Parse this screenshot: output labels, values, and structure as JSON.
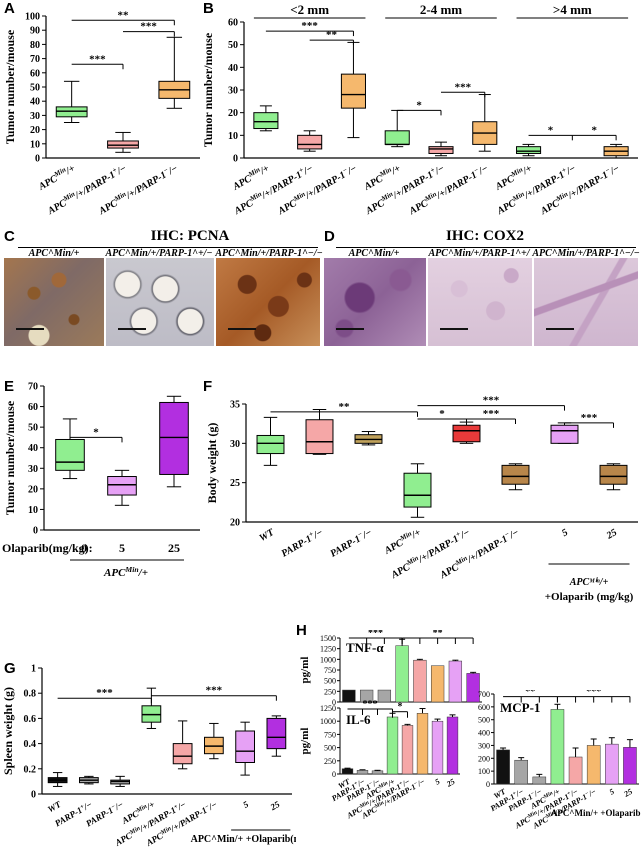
{
  "panel_labels": [
    "A",
    "B",
    "C",
    "D",
    "E",
    "F",
    "G",
    "H"
  ],
  "c": {
    "title": "IHC: PCNA",
    "captions": [
      "APC^Min/+",
      "APC^Min/+/PARP-1^+/−",
      "APC^Min/+/PARP-1^−/−"
    ]
  },
  "d": {
    "title": "IHC: COX2",
    "captions": [
      "APC^Min/+",
      "APC^Min/+/PARP-1^+/−",
      "APC^Min/+/PARP-1^−/−"
    ]
  },
  "colors": {
    "green": "#90ee90",
    "pink": "#f5a7a7",
    "orange": "#f5b86d",
    "tan": "#c0a25c",
    "red": "#e83a3a",
    "brown": "#b8864a",
    "violet": "#e6a1f5",
    "purple": "#b22fe0",
    "black": "#111111",
    "grey": "#a6a6a6"
  },
  "chart_data": [
    {
      "id": "A",
      "type": "box",
      "ylabel": "Tumor number/mouse",
      "ylim": [
        0,
        100
      ],
      "ticks": [
        0,
        10,
        20,
        30,
        40,
        50,
        60,
        70,
        80,
        90,
        100
      ],
      "categories": [
        "APC^Min/+",
        "APC^Min/+/PARP-1^+/−",
        "APC^Min/+/PARP-1^−/−"
      ],
      "boxes": [
        {
          "min": 25,
          "q1": 29,
          "median": 33,
          "q3": 36,
          "max": 54,
          "color": "#90ee90"
        },
        {
          "min": 4,
          "q1": 7,
          "median": 9,
          "q3": 12,
          "max": 18,
          "color": "#f5a7a7"
        },
        {
          "min": 35,
          "q1": 42,
          "median": 48,
          "q3": 54,
          "max": 85,
          "color": "#f5b86d"
        }
      ],
      "sig": [
        {
          "from": 0,
          "to": 2,
          "y": 97,
          "label": "**"
        },
        {
          "from": 1,
          "to": 2,
          "y": 89,
          "label": "***"
        },
        {
          "from": 0,
          "to": 1,
          "y": 66,
          "label": "***"
        }
      ]
    },
    {
      "id": "B",
      "type": "box",
      "ylabel": "Tumor number/mouse",
      "ylim": [
        0,
        60
      ],
      "ticks": [
        0,
        10,
        20,
        30,
        40,
        50,
        60
      ],
      "group_labels": [
        "<2 mm",
        "2-4 mm",
        ">4 mm"
      ],
      "categories": [
        "APC^Min/+",
        "APC^Min/+/PARP-1^+/−",
        "APC^Min/+/PARP-1^−/−",
        "APC^Min/+",
        "APC^Min/+/PARP-1^+/−",
        "APC^Min/+/PARP-1^−/−",
        "APC^Min/+",
        "APC^Min/+/PARP-1^+/−",
        "APC^Min/+/PARP-1^−/−"
      ],
      "boxes": [
        {
          "min": 12,
          "q1": 13,
          "median": 16,
          "q3": 20,
          "max": 23,
          "color": "#90ee90"
        },
        {
          "min": 3,
          "q1": 4,
          "median": 6,
          "q3": 10,
          "max": 12,
          "color": "#f5a7a7"
        },
        {
          "min": 9,
          "q1": 22,
          "median": 28,
          "q3": 37,
          "max": 51,
          "color": "#f5b86d"
        },
        {
          "min": 5,
          "q1": 6,
          "median": 6,
          "q3": 12,
          "max": 21,
          "color": "#90ee90"
        },
        {
          "min": 1,
          "q1": 2,
          "median": 4,
          "q3": 5,
          "max": 7,
          "color": "#f5a7a7"
        },
        {
          "min": 3,
          "q1": 6,
          "median": 11,
          "q3": 16,
          "max": 28,
          "color": "#f5b86d"
        },
        {
          "min": 1,
          "q1": 2,
          "median": 3,
          "q3": 5,
          "max": 6,
          "color": "#90ee90"
        },
        null,
        {
          "min": 0,
          "q1": 1,
          "median": 3,
          "q3": 5,
          "max": 6,
          "color": "#f5b86d"
        }
      ],
      "sig": [
        {
          "from": 0,
          "to": 2,
          "y": 56,
          "label": "***"
        },
        {
          "from": 1,
          "to": 2,
          "y": 52,
          "label": "**"
        },
        {
          "from": 3,
          "to": 4,
          "y": 21,
          "label": "*"
        },
        {
          "from": 4,
          "to": 5,
          "y": 29,
          "label": "***"
        },
        {
          "from": 6,
          "to": 7,
          "y": 10,
          "label": "*"
        },
        {
          "from": 7,
          "to": 8,
          "y": 10,
          "label": "*"
        }
      ]
    },
    {
      "id": "E",
      "type": "box",
      "ylabel": "Tumor number/mouse",
      "ylim": [
        0,
        70
      ],
      "ticks": [
        0,
        10,
        20,
        30,
        40,
        50,
        60,
        70
      ],
      "xprefix": "Olaparib(mg/kg): ",
      "categories": [
        "0",
        "5",
        "25"
      ],
      "group_label": "APC^Min/+",
      "boxes": [
        {
          "min": 25,
          "q1": 29,
          "median": 33,
          "q3": 44,
          "max": 54,
          "color": "#90ee90"
        },
        {
          "min": 12,
          "q1": 17,
          "median": 22,
          "q3": 26,
          "max": 29,
          "color": "#e6a1f5"
        },
        {
          "min": 21,
          "q1": 27,
          "median": 45,
          "q3": 62,
          "max": 65,
          "color": "#b22fe0"
        }
      ],
      "sig": [
        {
          "from": 0,
          "to": 1,
          "y": 45,
          "label": "*"
        }
      ]
    },
    {
      "id": "F",
      "type": "box",
      "ylabel": "Body weight (g)",
      "ylim": [
        20,
        35
      ],
      "ticks": [
        20,
        25,
        30,
        35
      ],
      "categories": [
        "WT",
        "PARP-1^+/−",
        "PARP-1^−/−",
        "APC^Min/+",
        "APC^Min/+/PARP-1^+/−",
        "APC^Min/+/PARP-1^−/−",
        "5",
        "25"
      ],
      "group_label": "APC^Min/+ +Olaparib (mg/kg)",
      "boxes": [
        {
          "min": 27.2,
          "q1": 28.7,
          "median": 30.0,
          "q3": 31.0,
          "max": 33.3,
          "color": "#90ee90"
        },
        {
          "min": 28.6,
          "q1": 28.7,
          "median": 30.2,
          "q3": 33.0,
          "max": 34.3,
          "color": "#f5a7a7"
        },
        {
          "min": 29.8,
          "q1": 30.0,
          "median": 30.5,
          "q3": 31.1,
          "max": 31.5,
          "color": "#c0a25c"
        },
        {
          "min": 20.6,
          "q1": 21.9,
          "median": 23.4,
          "q3": 26.2,
          "max": 27.4,
          "color": "#90ee90"
        },
        {
          "min": 30.0,
          "q1": 30.2,
          "median": 31.6,
          "q3": 32.3,
          "max": 32.7,
          "color": "#e83a3a"
        },
        {
          "min": 24.1,
          "q1": 24.8,
          "median": 25.8,
          "q3": 27.2,
          "max": 27.4,
          "color": "#b8864a"
        },
        {
          "min": 30.0,
          "q1": 30.0,
          "median": 31.6,
          "q3": 32.3,
          "max": 32.6,
          "color": "#e6a1f5"
        },
        {
          "min": 24.1,
          "q1": 24.8,
          "median": 25.8,
          "q3": 27.2,
          "max": 27.4,
          "color": "#b8864a"
        }
      ],
      "sig": [
        {
          "from": 0,
          "to": 3,
          "y": 34.0,
          "label": "**"
        },
        {
          "from": 3,
          "to": 4,
          "y": 33.1,
          "label": "*"
        },
        {
          "from": 3,
          "to": 6,
          "y": 34.8,
          "label": "***"
        },
        {
          "from": 4,
          "to": 5,
          "y": 33.1,
          "label": "***"
        },
        {
          "from": 6,
          "to": 7,
          "y": 32.6,
          "label": "***"
        }
      ]
    },
    {
      "id": "G",
      "type": "box",
      "ylabel": "Spleen weight (g)",
      "ylim": [
        0,
        1
      ],
      "ticks": [
        "0",
        "0.2",
        "0.4",
        "0.6",
        "0.8",
        "1"
      ],
      "tick_values": [
        0,
        0.2,
        0.4,
        0.6,
        0.8,
        1
      ],
      "categories": [
        "WT",
        "PARP-1^+/−",
        "PARP-1^−/−",
        "APC^Min/+",
        "APC^Min/+/PARP-1^+/−",
        "APC^Min/+/PARP-1^−/−",
        "5",
        "25"
      ],
      "group_label": "APC^Min/+ +Olaparib(mg/kg)",
      "boxes": [
        {
          "min": 0.06,
          "q1": 0.09,
          "median": 0.11,
          "q3": 0.13,
          "max": 0.17,
          "color": "#111111"
        },
        {
          "min": 0.08,
          "q1": 0.09,
          "median": 0.11,
          "q3": 0.13,
          "max": 0.14,
          "color": "#a6a6a6"
        },
        {
          "min": 0.06,
          "q1": 0.08,
          "median": 0.1,
          "q3": 0.11,
          "max": 0.14,
          "color": "#a6a6a6"
        },
        {
          "min": 0.52,
          "q1": 0.57,
          "median": 0.63,
          "q3": 0.7,
          "max": 0.84,
          "color": "#90ee90"
        },
        {
          "min": 0.2,
          "q1": 0.24,
          "median": 0.3,
          "q3": 0.4,
          "max": 0.58,
          "color": "#f5a7a7"
        },
        {
          "min": 0.28,
          "q1": 0.32,
          "median": 0.38,
          "q3": 0.45,
          "max": 0.56,
          "color": "#f5b86d"
        },
        {
          "min": 0.15,
          "q1": 0.25,
          "median": 0.34,
          "q3": 0.5,
          "max": 0.57,
          "color": "#e6a1f5"
        },
        {
          "min": 0.3,
          "q1": 0.36,
          "median": 0.45,
          "q3": 0.6,
          "max": 0.62,
          "color": "#b22fe0"
        }
      ],
      "sig": [
        {
          "from": 0,
          "to": 3,
          "y": 0.76,
          "label": "***"
        },
        {
          "from": 3,
          "to": 7,
          "y": 0.78,
          "label": "***"
        }
      ]
    },
    {
      "id": "H-TNF",
      "type": "bar",
      "title": "TNF-α",
      "ylabel": "pg/ml",
      "ylim": [
        0,
        1500
      ],
      "ticks": [
        0,
        250,
        500,
        750,
        1000,
        1250,
        1500
      ],
      "categories": [
        "WT",
        "PARP-1^+/−",
        "PARP-1^−/−",
        "APC^Min/+",
        "APC^Min/+/PARP-1^+/−",
        "APC^Min/+/PARP-1^−/−",
        "5",
        "25"
      ],
      "values": [
        280,
        280,
        280,
        1320,
        980,
        850,
        960,
        670
      ],
      "errors": [
        0,
        0,
        0,
        150,
        20,
        0,
        20,
        25
      ],
      "colors": [
        "#111111",
        "#a6a6a6",
        "#a6a6a6",
        "#90ee90",
        "#f5a7a7",
        "#f5b86d",
        "#e6a1f5",
        "#b22fe0"
      ],
      "sig": [
        {
          "from": 0,
          "to": 3,
          "y": 1500,
          "label": "***"
        },
        {
          "from": 3,
          "to": 7,
          "y": 1500,
          "label": "**"
        }
      ]
    },
    {
      "id": "H-IL6",
      "type": "bar",
      "title": "IL-6",
      "ylabel": "pg/ml",
      "ylim": [
        0,
        1250
      ],
      "ticks": [
        0,
        250,
        500,
        750,
        1000,
        1250
      ],
      "categories": [
        "WT",
        "PARP-1^+/−",
        "PARP-1^−/−",
        "APC^Min/+",
        "APC^Min/+/PARP-1^+/−",
        "APC^Min/+/PARP-1^−/−",
        "5",
        "25"
      ],
      "values": [
        100,
        70,
        60,
        1080,
        920,
        1150,
        1000,
        1080
      ],
      "errors": [
        10,
        10,
        10,
        70,
        20,
        90,
        40,
        40
      ],
      "colors": [
        "#111111",
        "#a6a6a6",
        "#a6a6a6",
        "#90ee90",
        "#f5a7a7",
        "#f5b86d",
        "#e6a1f5",
        "#b22fe0"
      ],
      "sig": [
        {
          "from": 0,
          "to": 3,
          "y": 1230,
          "label": "***"
        },
        {
          "from": 3,
          "to": 4,
          "y": 1180,
          "label": "*"
        }
      ]
    },
    {
      "id": "H-MCP1",
      "type": "bar",
      "title": "MCP-1",
      "ylabel": "",
      "ylim": [
        0,
        700
      ],
      "ticks": [
        0,
        100,
        200,
        300,
        400,
        500,
        600,
        700
      ],
      "categories": [
        "WT",
        "PARP-1^+/−",
        "PARP-1^−/−",
        "APC^Min/+",
        "APC^Min/+/PARP-1^+/−",
        "APC^Min/+/PARP-1^−/−",
        "5",
        "25"
      ],
      "values": [
        265,
        185,
        55,
        580,
        210,
        300,
        310,
        285
      ],
      "errors": [
        15,
        20,
        20,
        40,
        70,
        50,
        50,
        60
      ],
      "colors": [
        "#111111",
        "#a6a6a6",
        "#a6a6a6",
        "#90ee90",
        "#f5a7a7",
        "#f5b86d",
        "#e6a1f5",
        "#b22fe0"
      ],
      "group_label": "APC^Min/+ +Olaparib (mg/kg)",
      "sig": [
        {
          "from": 0,
          "to": 3,
          "y": 680,
          "label": "**"
        },
        {
          "from": 3,
          "to": 7,
          "y": 680,
          "label": "***"
        }
      ]
    }
  ]
}
